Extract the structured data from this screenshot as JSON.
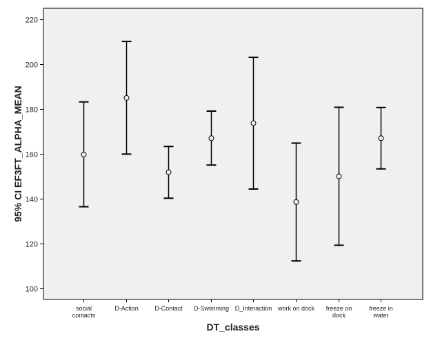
{
  "chart_data": {
    "type": "errorbar",
    "xlabel": "DT_classes",
    "ylabel": "95% CI EF3FT_ALPHA_MEAN",
    "ylim": [
      95,
      225
    ],
    "yticks": [
      100,
      120,
      140,
      160,
      180,
      200,
      220
    ],
    "grid": false,
    "categories": [
      "social contacts",
      "D-Action",
      "D-Contact",
      "D-Swimming",
      "D_Interaction",
      "work on dock",
      "freeze on dock",
      "freeze in water"
    ],
    "category_label_lines": [
      [
        "social",
        "contacts"
      ],
      [
        "D-Action"
      ],
      [
        "D-Contact"
      ],
      [
        "D-Swimming"
      ],
      [
        "D_Interaction"
      ],
      [
        "work on dock"
      ],
      [
        "freeze on",
        "dock"
      ],
      [
        "freeze in",
        "water"
      ]
    ],
    "means": [
      159.7,
      185.0,
      151.8,
      167.0,
      173.7,
      138.5,
      150.0,
      167.0
    ],
    "lower": [
      136.4,
      159.9,
      140.2,
      155.0,
      144.3,
      112.2,
      119.2,
      153.3
    ],
    "upper": [
      183.2,
      210.2,
      163.3,
      179.1,
      203.1,
      164.8,
      180.8,
      180.7
    ]
  },
  "colors": {
    "plot_background": "#f0f0f0",
    "frame": "#000000",
    "bars": "#000000",
    "marker_fill": "none"
  }
}
